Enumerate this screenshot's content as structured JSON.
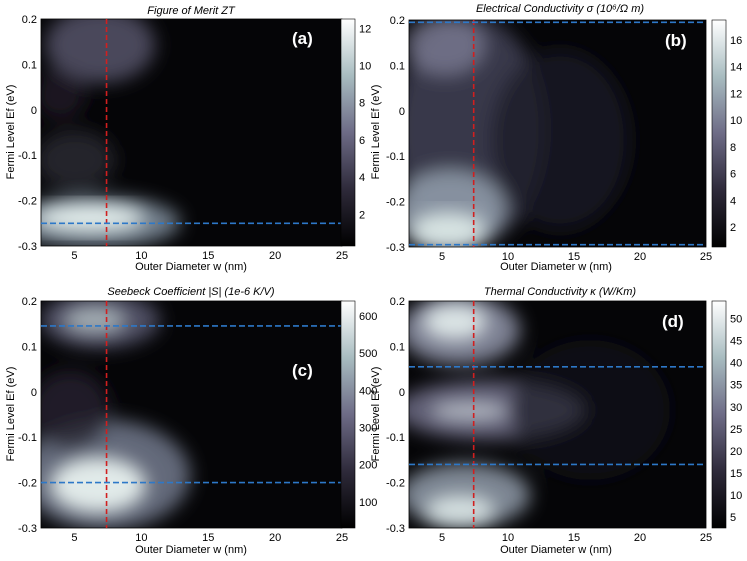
{
  "chart_data": [
    {
      "type": "heatmap",
      "panel_label": "(a)",
      "title": "Figure of Merit ZT",
      "xlabel": "Outer Diameter w (nm)",
      "ylabel": "Fermi Level Ef (eV)",
      "xlim": [
        2.5,
        25
      ],
      "ylim": [
        -0.3,
        0.2
      ],
      "x_ticks": [
        "5",
        "10",
        "15",
        "20",
        "25"
      ],
      "y_ticks": [
        "0.2",
        "0.1",
        "0",
        "-0.1",
        "-0.2",
        "-0.3"
      ],
      "colorbar": {
        "min": 0.3,
        "max": 12.5,
        "ticks": [
          "2",
          "4",
          "6",
          "8",
          "10",
          "12"
        ]
      },
      "markers": {
        "vertical_x": [
          7.4
        ],
        "horizontal_y": [
          -0.25
        ]
      }
    },
    {
      "type": "heatmap",
      "panel_label": "(b)",
      "title": "Electrical Conductivity σ (10⁶/Ω m)",
      "xlabel": "Outer Diameter w (nm)",
      "ylabel": "Fermi Level Ef (eV)",
      "xlim": [
        2.5,
        25
      ],
      "ylim": [
        -0.3,
        0.2
      ],
      "x_ticks": [
        "5",
        "10",
        "15",
        "20",
        "25"
      ],
      "y_ticks": [
        "0.2",
        "0.1",
        "0",
        "-0.1",
        "-0.2",
        "-0.3"
      ],
      "colorbar": {
        "min": 0.5,
        "max": 17.5,
        "ticks": [
          "2",
          "4",
          "6",
          "8",
          "10",
          "12",
          "14",
          "16"
        ]
      },
      "markers": {
        "vertical_x": [
          7.4
        ],
        "horizontal_y": [
          0.195,
          -0.295
        ]
      }
    },
    {
      "type": "heatmap",
      "panel_label": "(c)",
      "title": "Seebeck Coefficient |S| (1e-6 K/V)",
      "xlabel": "Outer Diameter w (nm)",
      "ylabel": "Fermi Level Ef (eV)",
      "xlim": [
        2.5,
        25
      ],
      "ylim": [
        -0.3,
        0.2
      ],
      "x_ticks": [
        "5",
        "10",
        "15",
        "20",
        "25"
      ],
      "y_ticks": [
        "0.2",
        "0.1",
        "0",
        "-0.1",
        "-0.2",
        "-0.3"
      ],
      "colorbar": {
        "min": 30,
        "max": 640,
        "ticks": [
          "100",
          "200",
          "300",
          "400",
          "500",
          "600"
        ]
      },
      "markers": {
        "vertical_x": [
          7.4
        ],
        "horizontal_y": [
          0.145,
          -0.2
        ]
      }
    },
    {
      "type": "heatmap",
      "panel_label": "(d)",
      "title": "Thermal Conductivity κ (W/Km)",
      "xlabel": "Outer Diameter w (nm)",
      "ylabel": "Fermi Level Ef (eV)",
      "xlim": [
        2.5,
        25
      ],
      "ylim": [
        -0.3,
        0.2
      ],
      "x_ticks": [
        "5",
        "10",
        "15",
        "20",
        "25"
      ],
      "y_ticks": [
        "0.2",
        "0.1",
        "0",
        "-0.1",
        "-0.2",
        "-0.3"
      ],
      "colorbar": {
        "min": 2.5,
        "max": 54,
        "ticks": [
          "5",
          "10",
          "15",
          "20",
          "25",
          "30",
          "35",
          "40",
          "45",
          "50"
        ]
      },
      "markers": {
        "vertical_x": [
          7.4
        ],
        "horizontal_y": [
          0.055,
          -0.16
        ]
      }
    }
  ]
}
